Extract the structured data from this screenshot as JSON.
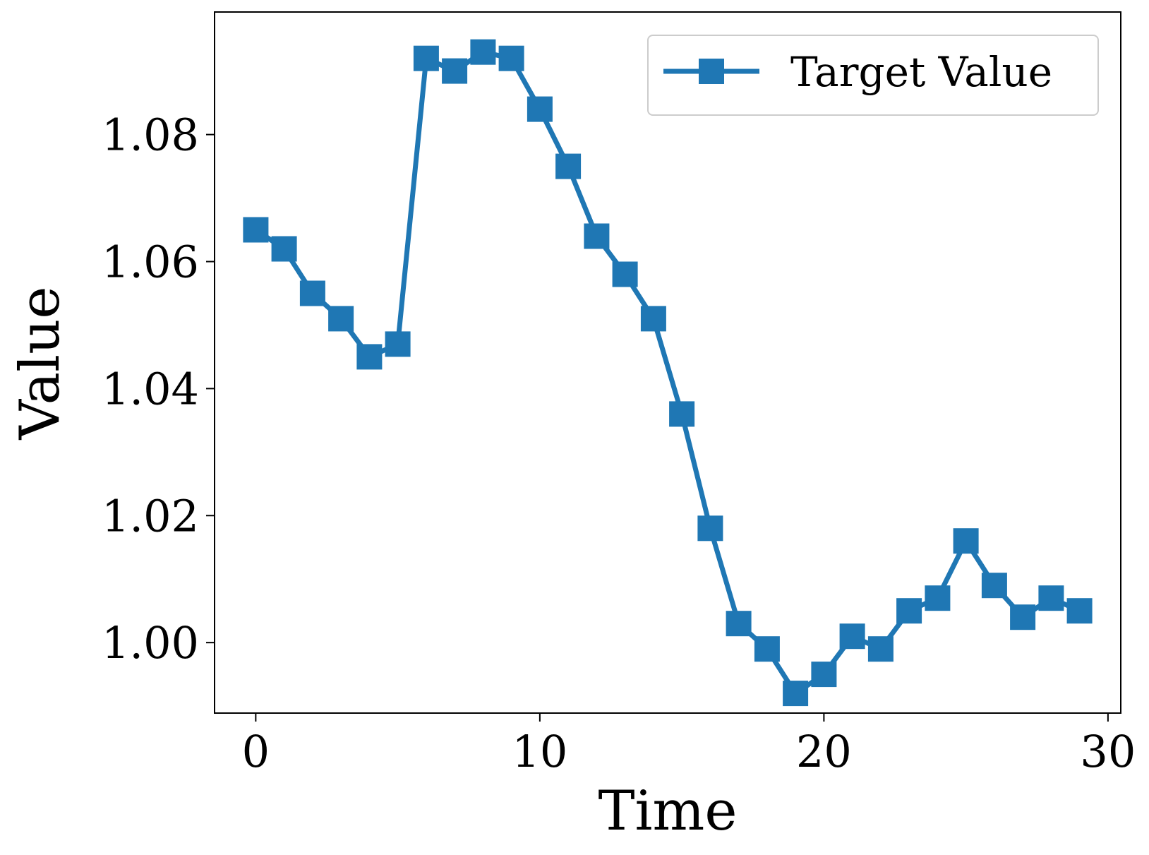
{
  "chart_data": {
    "type": "line",
    "title": "",
    "xlabel": "Time",
    "ylabel": "Value",
    "xlim": [
      -1.45,
      30.45
    ],
    "ylim": [
      0.9889,
      1.0993
    ],
    "xticks": [
      {
        "value": 0,
        "label": "0"
      },
      {
        "value": 10,
        "label": "10"
      },
      {
        "value": 20,
        "label": "20"
      },
      {
        "value": 30,
        "label": "30"
      }
    ],
    "yticks": [
      {
        "value": 1.0,
        "label": "1.00"
      },
      {
        "value": 1.02,
        "label": "1.02"
      },
      {
        "value": 1.04,
        "label": "1.04"
      },
      {
        "value": 1.06,
        "label": "1.06"
      },
      {
        "value": 1.08,
        "label": "1.08"
      }
    ],
    "grid": false,
    "legend_position": "top-right",
    "series": [
      {
        "name": "Target Value",
        "color": "#1f77b4",
        "marker": "square",
        "x": [
          0,
          1,
          2,
          3,
          4,
          5,
          6,
          7,
          8,
          9,
          10,
          11,
          12,
          13,
          14,
          15,
          16,
          17,
          18,
          19,
          20,
          21,
          22,
          23,
          24,
          25,
          26,
          27,
          28,
          29
        ],
        "y": [
          1.065,
          1.062,
          1.055,
          1.051,
          1.045,
          1.047,
          1.092,
          1.09,
          1.093,
          1.092,
          1.084,
          1.075,
          1.064,
          1.058,
          1.051,
          1.036,
          1.018,
          1.003,
          0.999,
          0.992,
          0.995,
          1.001,
          0.999,
          1.005,
          1.007,
          1.016,
          1.009,
          1.004,
          1.007,
          1.005
        ]
      }
    ]
  }
}
